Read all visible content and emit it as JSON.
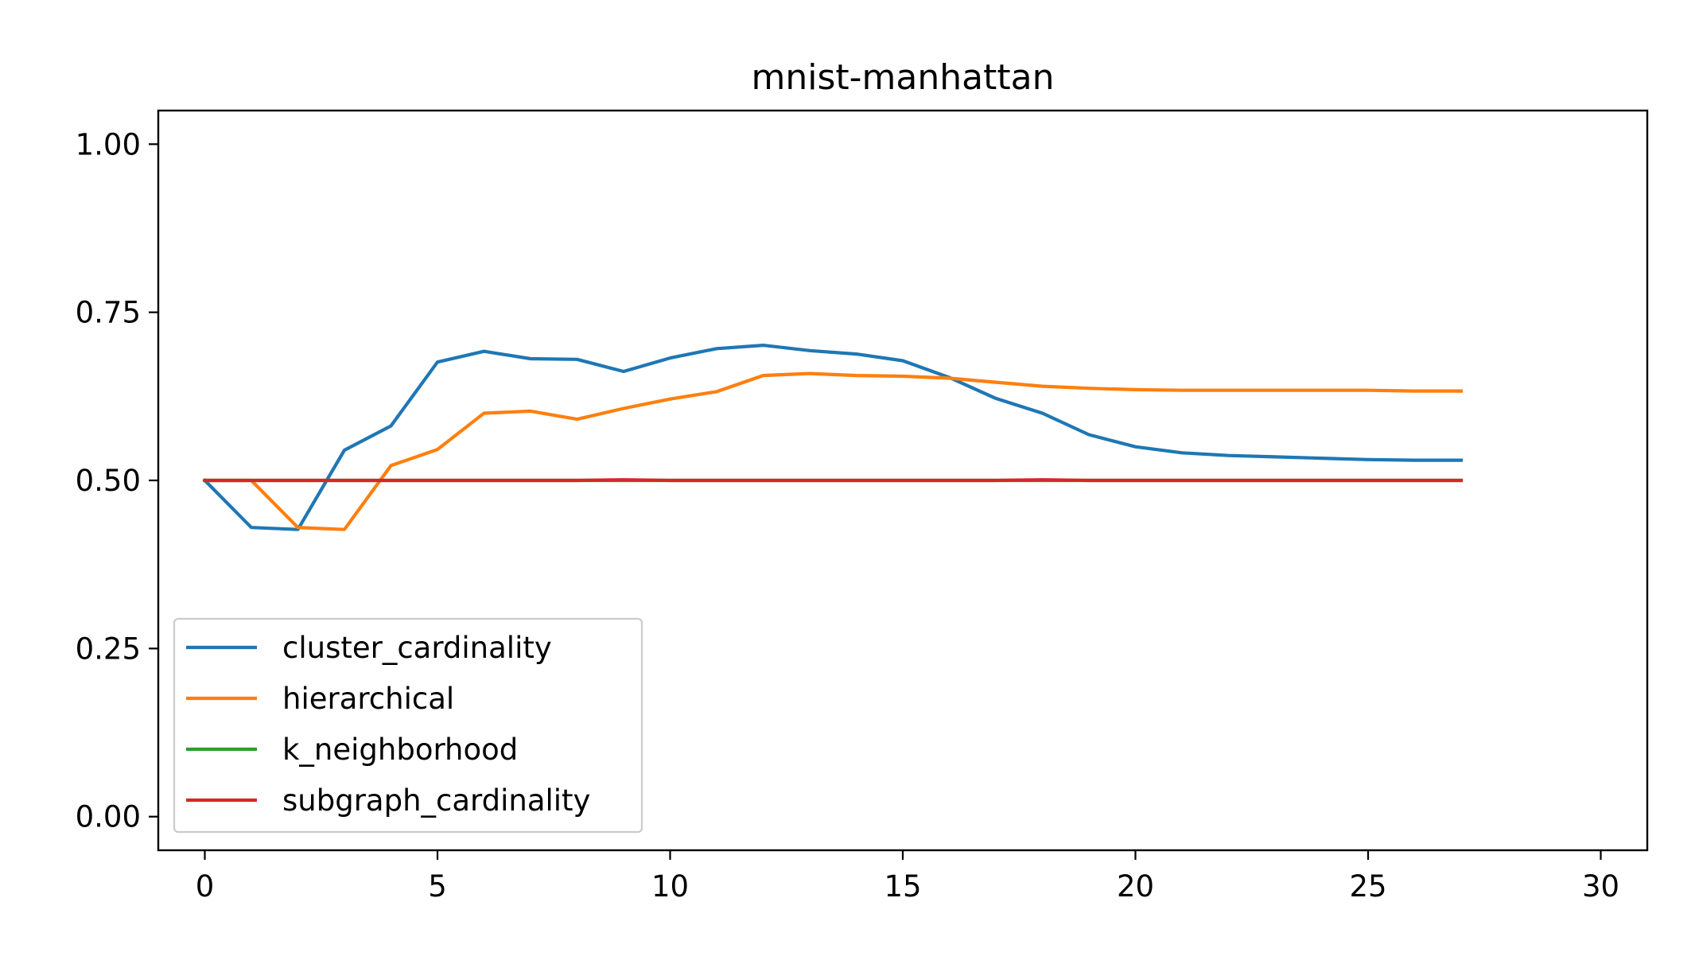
{
  "chart_data": {
    "type": "line",
    "title": "mnist-manhattan",
    "xlabel": "",
    "ylabel": "",
    "xlim": [
      -1,
      31
    ],
    "ylim": [
      -0.05,
      1.05
    ],
    "x_ticks": [
      0,
      5,
      10,
      15,
      20,
      25,
      30
    ],
    "x_tick_labels": [
      "0",
      "5",
      "10",
      "15",
      "20",
      "25",
      "30"
    ],
    "y_ticks": [
      0.0,
      0.25,
      0.5,
      0.75,
      1.0
    ],
    "y_tick_labels": [
      "0.00",
      "0.25",
      "0.50",
      "0.75",
      "1.00"
    ],
    "grid": false,
    "legend_position": "lower-left",
    "x": [
      0,
      1,
      2,
      3,
      4,
      5,
      6,
      7,
      8,
      9,
      10,
      11,
      12,
      13,
      14,
      15,
      16,
      17,
      18,
      19,
      20,
      21,
      22,
      23,
      24,
      25,
      26,
      27
    ],
    "series": [
      {
        "name": "cluster_cardinality",
        "color": "#1f77b4",
        "values": [
          0.5,
          0.43,
          0.427,
          0.545,
          0.581,
          0.676,
          0.692,
          0.681,
          0.68,
          0.662,
          0.682,
          0.696,
          0.701,
          0.693,
          0.688,
          0.678,
          0.653,
          0.622,
          0.6,
          0.568,
          0.55,
          0.541,
          0.537,
          0.535,
          0.533,
          0.531,
          0.53,
          0.53
        ]
      },
      {
        "name": "hierarchical",
        "color": "#ff7f0e",
        "values": [
          0.5,
          0.5,
          0.43,
          0.427,
          0.522,
          0.546,
          0.6,
          0.603,
          0.591,
          0.607,
          0.621,
          0.632,
          0.656,
          0.659,
          0.656,
          0.655,
          0.652,
          0.646,
          0.64,
          0.637,
          0.635,
          0.634,
          0.634,
          0.634,
          0.634,
          0.634,
          0.633,
          0.633
        ]
      },
      {
        "name": "k_neighborhood",
        "color": "#2ca02c",
        "values": [
          0.5,
          0.5,
          0.5,
          0.5,
          0.5,
          0.5,
          0.5,
          0.5,
          0.5,
          0.5,
          0.5,
          0.5,
          0.5,
          0.5,
          0.5,
          0.5,
          0.5,
          0.5,
          0.5,
          0.5,
          0.5,
          0.5,
          0.5,
          0.5,
          0.5,
          0.5,
          0.5,
          0.5
        ]
      },
      {
        "name": "subgraph_cardinality",
        "color": "#d62728",
        "values": [
          0.5,
          0.5,
          0.5,
          0.5,
          0.5,
          0.5,
          0.5,
          0.5,
          0.5,
          0.501,
          0.5,
          0.5,
          0.5,
          0.5,
          0.5,
          0.5,
          0.5,
          0.5,
          0.501,
          0.5,
          0.5,
          0.5,
          0.5,
          0.5,
          0.5,
          0.5,
          0.5,
          0.5
        ]
      }
    ]
  }
}
